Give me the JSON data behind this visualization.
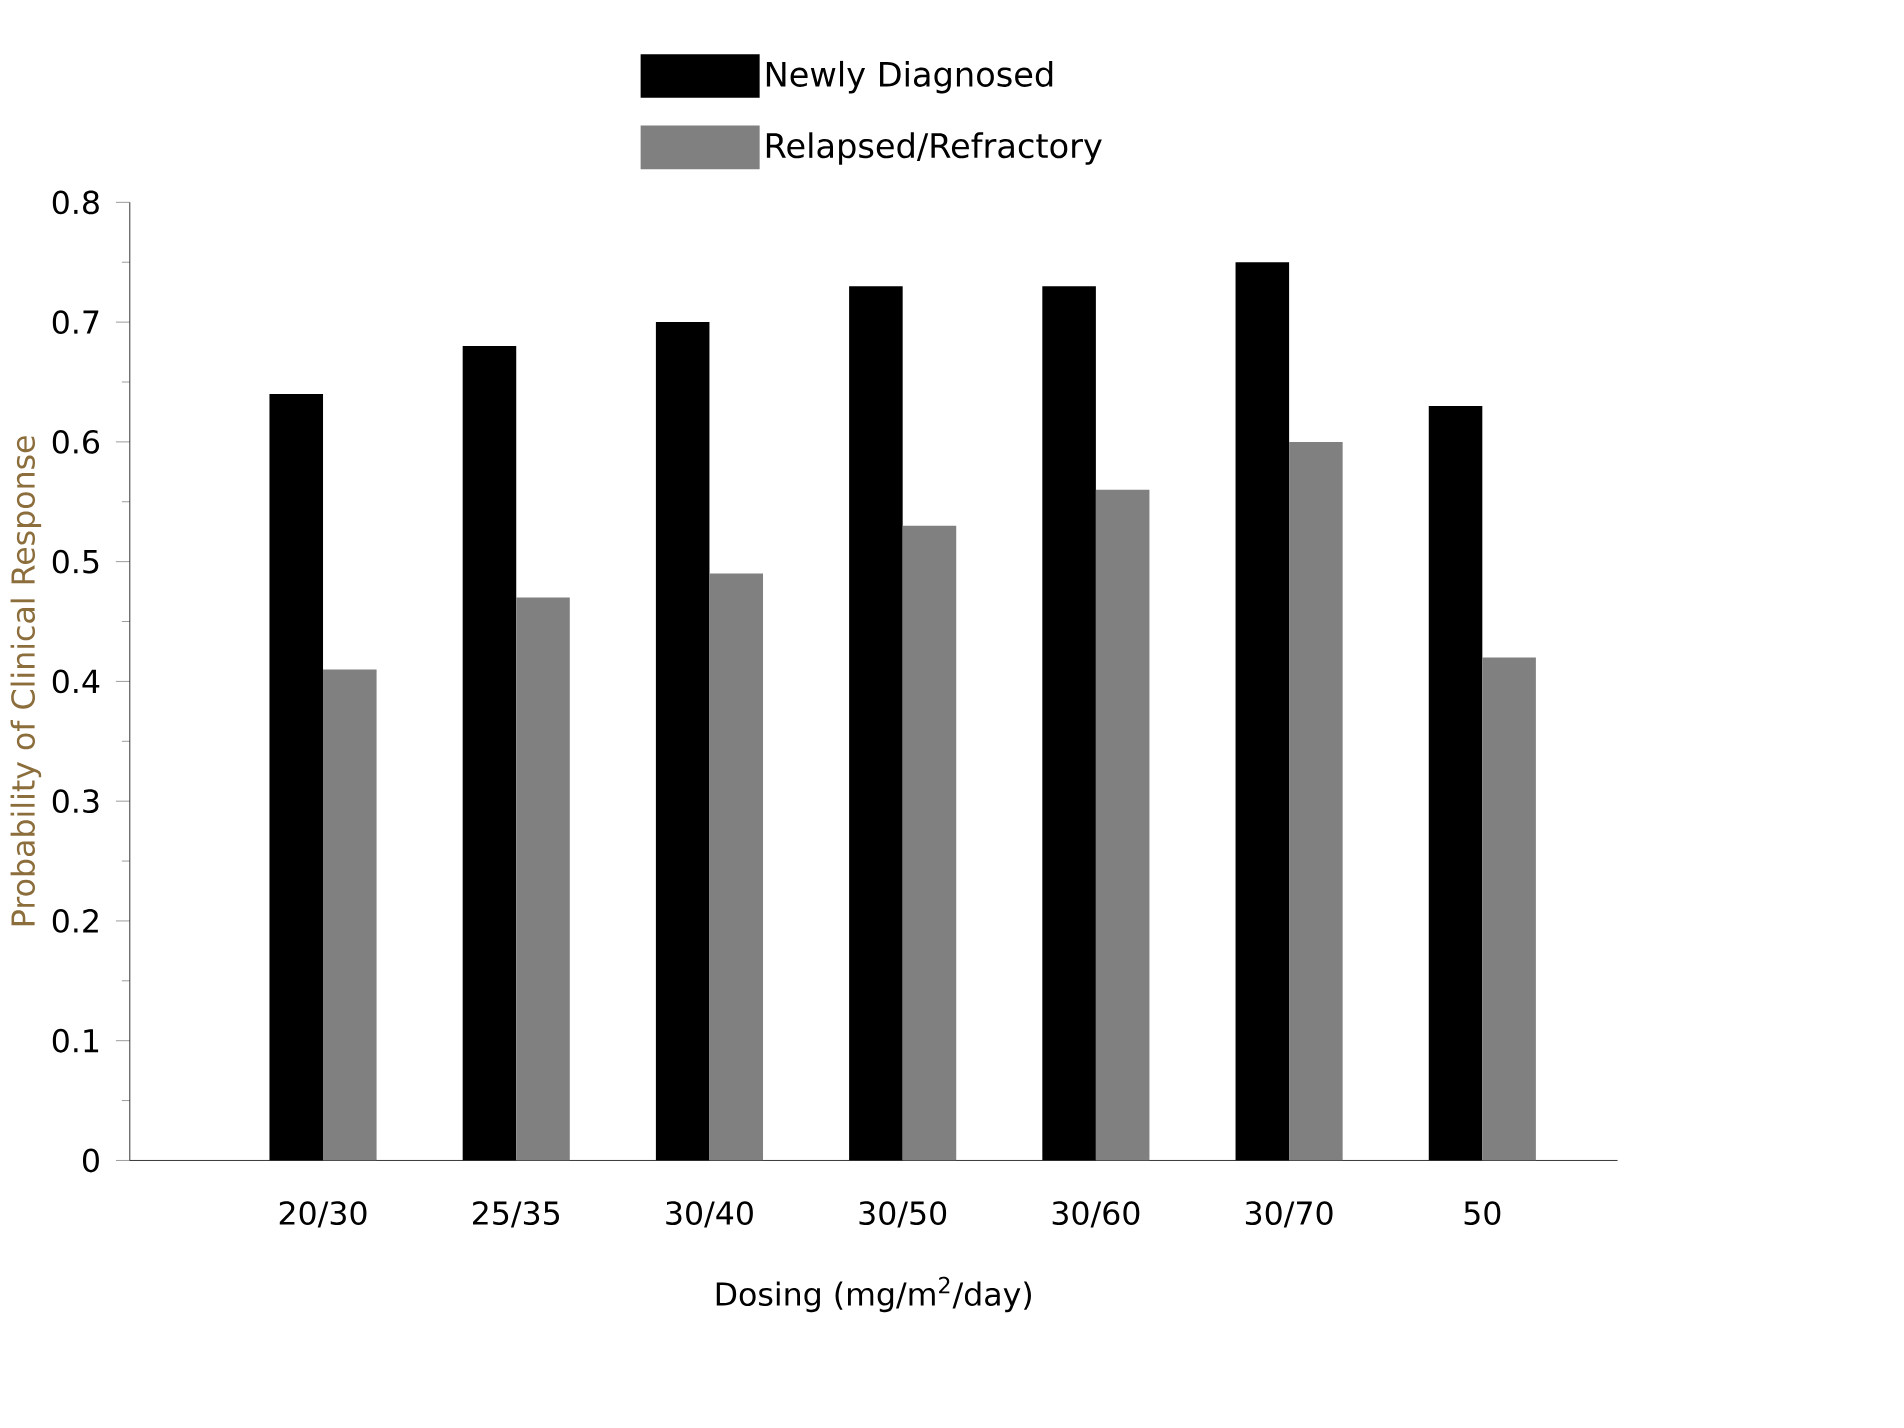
{
  "chart_data": {
    "type": "bar",
    "xlabel": "Dosing (mg/m$^{2}$/day)",
    "ylabel": "Probability of Clinical Response",
    "categories": [
      "20/30",
      "25/35",
      "30/40",
      "30/50",
      "30/60",
      "30/70",
      "50"
    ],
    "series": [
      {
        "name": "Newly Diagnosed",
        "color": "#000000",
        "values": [
          0.64,
          0.68,
          0.7,
          0.73,
          0.73,
          0.75,
          0.63
        ]
      },
      {
        "name": "Relapsed/Refractory",
        "color": "#808080",
        "values": [
          0.41,
          0.47,
          0.49,
          0.53,
          0.56,
          0.6,
          0.42
        ]
      }
    ],
    "ylim": [
      0,
      0.8
    ],
    "yticks": [
      0,
      0.1,
      0.2,
      0.3,
      0.4,
      0.5,
      0.6,
      0.7,
      0.8
    ],
    "legend": "top",
    "grid": false
  }
}
